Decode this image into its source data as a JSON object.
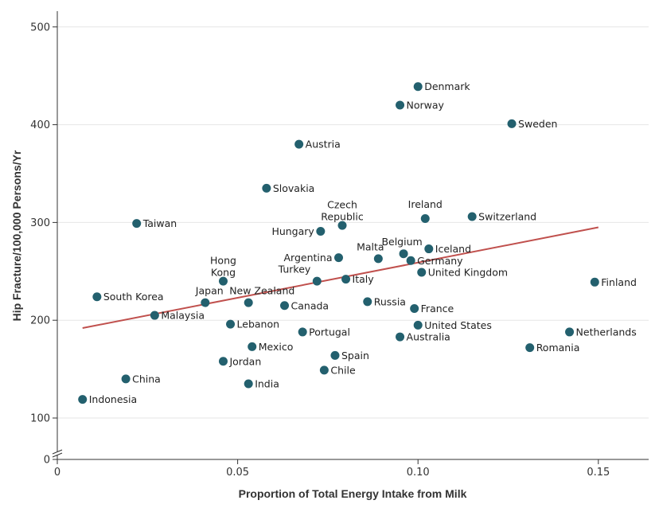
{
  "chart_data": {
    "type": "scatter",
    "xlabel": "Proportion of Total Energy Intake from Milk",
    "ylabel": "Hip Fracture/100,000 Persons/Yr",
    "xlim": [
      0,
      0.163
    ],
    "ylim": [
      100,
      512
    ],
    "y_break": true,
    "xticks": [
      "0",
      "0.05",
      "0.10",
      "0.15"
    ],
    "yticks": [
      "0",
      "100",
      "200",
      "300",
      "400",
      "500"
    ],
    "grid": "horizontal",
    "colors": {
      "point": "#23606e",
      "trend": "#c0504d",
      "grid": "#e6e6e6"
    },
    "trendline": {
      "x": [
        0.007,
        0.15
      ],
      "y": [
        192,
        295
      ]
    },
    "points": [
      {
        "name": "Denmark",
        "x": 0.1,
        "y": 439
      },
      {
        "name": "Norway",
        "x": 0.095,
        "y": 420
      },
      {
        "name": "Sweden",
        "x": 0.126,
        "y": 401
      },
      {
        "name": "Austria",
        "x": 0.067,
        "y": 380
      },
      {
        "name": "Slovakia",
        "x": 0.058,
        "y": 335
      },
      {
        "name": "Ireland",
        "x": 0.102,
        "y": 304
      },
      {
        "name": "Switzerland",
        "x": 0.115,
        "y": 306
      },
      {
        "name": "Czech Republic",
        "x": 0.079,
        "y": 297
      },
      {
        "name": "Taiwan",
        "x": 0.022,
        "y": 299
      },
      {
        "name": "Hungary",
        "x": 0.073,
        "y": 291
      },
      {
        "name": "Iceland",
        "x": 0.103,
        "y": 273
      },
      {
        "name": "Belgium",
        "x": 0.096,
        "y": 268
      },
      {
        "name": "Malta",
        "x": 0.089,
        "y": 263
      },
      {
        "name": "Argentina",
        "x": 0.078,
        "y": 264
      },
      {
        "name": "Germany",
        "x": 0.098,
        "y": 261
      },
      {
        "name": "Hong Kong",
        "x": 0.046,
        "y": 240
      },
      {
        "name": "United Kingdom",
        "x": 0.101,
        "y": 249
      },
      {
        "name": "Turkey",
        "x": 0.072,
        "y": 240
      },
      {
        "name": "Italy",
        "x": 0.08,
        "y": 242
      },
      {
        "name": "Finland",
        "x": 0.149,
        "y": 239
      },
      {
        "name": "South Korea",
        "x": 0.011,
        "y": 224
      },
      {
        "name": "Japan",
        "x": 0.041,
        "y": 218
      },
      {
        "name": "New Zealand",
        "x": 0.053,
        "y": 218
      },
      {
        "name": "Canada",
        "x": 0.063,
        "y": 215
      },
      {
        "name": "Russia",
        "x": 0.086,
        "y": 219
      },
      {
        "name": "France",
        "x": 0.099,
        "y": 212
      },
      {
        "name": "Malaysia",
        "x": 0.027,
        "y": 205
      },
      {
        "name": "Lebanon",
        "x": 0.048,
        "y": 196
      },
      {
        "name": "United States",
        "x": 0.1,
        "y": 195
      },
      {
        "name": "Portugal",
        "x": 0.068,
        "y": 188
      },
      {
        "name": "Netherlands",
        "x": 0.142,
        "y": 188
      },
      {
        "name": "Australia",
        "x": 0.095,
        "y": 183
      },
      {
        "name": "Mexico",
        "x": 0.054,
        "y": 173
      },
      {
        "name": "Romania",
        "x": 0.131,
        "y": 172
      },
      {
        "name": "Spain",
        "x": 0.077,
        "y": 164
      },
      {
        "name": "Jordan",
        "x": 0.046,
        "y": 158
      },
      {
        "name": "Chile",
        "x": 0.074,
        "y": 149
      },
      {
        "name": "China",
        "x": 0.019,
        "y": 140
      },
      {
        "name": "India",
        "x": 0.053,
        "y": 135
      },
      {
        "name": "Indonesia",
        "x": 0.007,
        "y": 119
      }
    ]
  }
}
